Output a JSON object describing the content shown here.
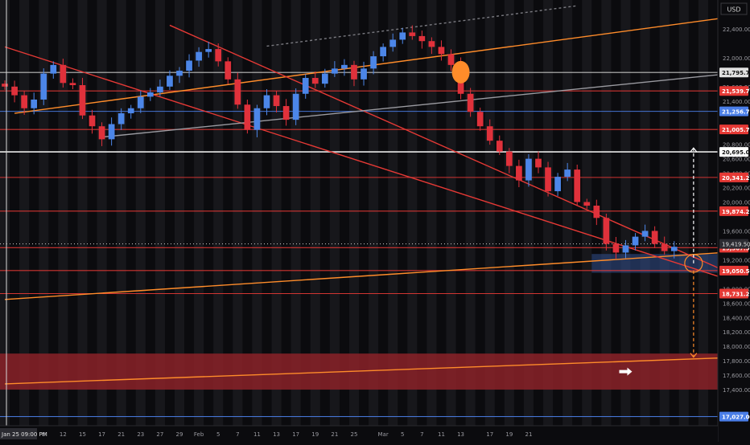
{
  "chart_data": {
    "type": "candlestick",
    "symbol_currency": "USD",
    "price_axis": {
      "ylim": [
        16900,
        22800
      ],
      "ticks": [
        22400,
        22000,
        21600,
        21400,
        20800,
        20600,
        20400,
        20200,
        20000,
        19600,
        19200,
        18800,
        18600,
        18400,
        18200,
        18000,
        17800,
        17600,
        17400
      ],
      "tick_labels": [
        "22,400.00",
        "22,000.00",
        "21,600.00",
        "21,400.00",
        "20,800.00",
        "20,600.00",
        "20,400.00",
        "20,200.00",
        "20,000.00",
        "19,600.00",
        "19,200.00",
        "18,800.00",
        "18,600.00",
        "18,400.00",
        "18,200.00",
        "18,000.00",
        "17,800.00",
        "17,600.00",
        "17,400.00"
      ]
    },
    "time_axis": {
      "bars_total": 74,
      "labels": [
        {
          "bar": 0,
          "text": "Jan 25  09:00 PM"
        },
        {
          "bar": 4,
          "text": "8"
        },
        {
          "bar": 6,
          "text": "12"
        },
        {
          "bar": 8,
          "text": "15"
        },
        {
          "bar": 10,
          "text": "17"
        },
        {
          "bar": 12,
          "text": "21"
        },
        {
          "bar": 14,
          "text": "23"
        },
        {
          "bar": 16,
          "text": "27"
        },
        {
          "bar": 18,
          "text": "29"
        },
        {
          "bar": 20,
          "text": "Feb"
        },
        {
          "bar": 22,
          "text": "5"
        },
        {
          "bar": 24,
          "text": "7"
        },
        {
          "bar": 26,
          "text": "11"
        },
        {
          "bar": 28,
          "text": "13"
        },
        {
          "bar": 30,
          "text": "17"
        },
        {
          "bar": 32,
          "text": "19"
        },
        {
          "bar": 34,
          "text": "21"
        },
        {
          "bar": 36,
          "text": "25"
        },
        {
          "bar": 39,
          "text": "Mar"
        },
        {
          "bar": 41,
          "text": "5"
        },
        {
          "bar": 43,
          "text": "7"
        },
        {
          "bar": 45,
          "text": "11"
        },
        {
          "bar": 47,
          "text": "13"
        },
        {
          "bar": 50,
          "text": "17"
        },
        {
          "bar": 52,
          "text": "19"
        },
        {
          "bar": 54,
          "text": "21"
        }
      ]
    },
    "closes": [
      21600,
      21480,
      21300,
      21420,
      21780,
      21900,
      21650,
      21620,
      21200,
      21050,
      20870,
      21080,
      21230,
      21300,
      21460,
      21520,
      21600,
      21750,
      21820,
      21960,
      22080,
      22120,
      21950,
      21700,
      21350,
      21000,
      21300,
      21480,
      21330,
      21140,
      21500,
      21720,
      21640,
      21780,
      21850,
      21900,
      21700,
      21850,
      22020,
      22150,
      22250,
      22350,
      22300,
      22230,
      22150,
      22050,
      21900,
      21500,
      21250,
      21050,
      20850,
      20700,
      20500,
      20300,
      20600,
      20480,
      20150,
      20350,
      20450,
      20000,
      19950,
      19780,
      19420,
      19300,
      19400,
      19520,
      19600,
      19420,
      19320,
      19380
    ],
    "current_price": {
      "value": 19419.5,
      "label": "19,419.50"
    },
    "levels": [
      {
        "value": 21795.75,
        "label": "21,795.75",
        "color": "#cfcfcf",
        "kind": "grey"
      },
      {
        "value": 21539.75,
        "label": "21,539.75",
        "color": "#e53935",
        "kind": "red"
      },
      {
        "value": 21256.75,
        "label": "21,256.75",
        "color": "#4a7ee8",
        "kind": "blue"
      },
      {
        "value": 21005.75,
        "label": "21,005.75",
        "color": "#e53935",
        "kind": "red"
      },
      {
        "value": 20695.0,
        "label": "20,695.00",
        "color": "#ffffff",
        "kind": "white"
      },
      {
        "value": 20341.25,
        "label": "20,341.25",
        "color": "#e53935",
        "kind": "red"
      },
      {
        "value": 19874.25,
        "label": "19,874.25",
        "color": "#e53935",
        "kind": "red"
      },
      {
        "value": 19367.5,
        "label": "19,367.50",
        "color": "#e53935",
        "kind": "red"
      },
      {
        "value": 19050.5,
        "label": "19,050.50",
        "color": "#e53935",
        "kind": "red"
      },
      {
        "value": 18731.25,
        "label": "18,731.25",
        "color": "#e53935",
        "kind": "red"
      },
      {
        "value": 17027.0,
        "label": "17,027.00",
        "color": "#4a7ee8",
        "kind": "blue"
      }
    ],
    "zones": [
      {
        "kind": "demand",
        "price_top": 17900,
        "price_bottom": 17400,
        "start_bar": 0,
        "end_bar": 74,
        "color": "#8b2228"
      },
      {
        "kind": "focus",
        "price_top": 19280,
        "price_bottom": 19020,
        "start_bar": 61,
        "end_bar": 74,
        "color": "#3a5ea8"
      }
    ],
    "trendlines": [
      {
        "color": "#ff8c2a",
        "from": {
          "bar": 0,
          "price": 18650
        },
        "to": {
          "bar": 74,
          "price": 19300
        }
      },
      {
        "color": "#ff8c2a",
        "from": {
          "bar": 1,
          "price": 21230
        },
        "to": {
          "bar": 74,
          "price": 22550
        }
      },
      {
        "color": "#ff8c2a",
        "from": {
          "bar": 0,
          "price": 17480
        },
        "to": {
          "bar": 74,
          "price": 17840
        }
      },
      {
        "color": "#e53935",
        "from": {
          "bar": 0,
          "price": 22150
        },
        "to": {
          "bar": 74,
          "price": 18950
        }
      },
      {
        "color": "#e53935",
        "from": {
          "bar": 17,
          "price": 22450
        },
        "to": {
          "bar": 74,
          "price": 19060
        }
      },
      {
        "color": "#9a9aa0",
        "from": {
          "bar": 10,
          "price": 20900
        },
        "to": {
          "bar": 74,
          "price": 21770
        }
      },
      {
        "color": "#7a7a80",
        "dashed": true,
        "from": {
          "bar": 27,
          "price": 22160
        },
        "to": {
          "bar": 59,
          "price": 22720
        }
      }
    ],
    "markers": [
      {
        "kind": "orange-dot",
        "bar": 47,
        "price": 21800,
        "color": "#ff8c2a"
      },
      {
        "kind": "target-circle",
        "bar": 71,
        "price": 19150,
        "color": "#ff8c2a"
      },
      {
        "kind": "arrow-up-dashed",
        "bar": 71,
        "from_price": 19150,
        "to_price": 20750,
        "color": "#ffffff"
      },
      {
        "kind": "arrow-down-dashed",
        "bar": 71,
        "from_price": 19050,
        "to_price": 17850,
        "color": "#ff8c2a"
      },
      {
        "kind": "arrow-right",
        "bar": 64,
        "price": 17650,
        "color": "#ffffff"
      }
    ]
  }
}
